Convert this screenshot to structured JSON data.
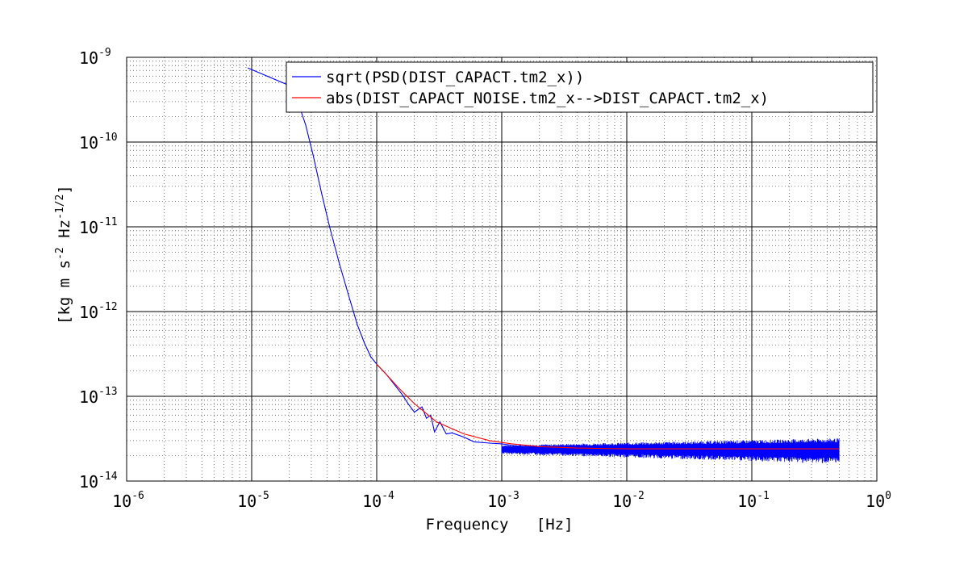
{
  "chart_data": {
    "type": "line",
    "xscale": "log",
    "yscale": "log",
    "xlim": [
      1e-06,
      1
    ],
    "ylim": [
      1e-14,
      1e-09
    ],
    "grid": true,
    "legend_position": "top-right",
    "xlabel": "Frequency   [Hz]",
    "ylabel": {
      "prefix": "[kg m s",
      "exp1": "-2",
      "mid": " Hz",
      "exp2": "-1/2",
      "suffix": "]"
    },
    "x_ticks": [
      {
        "value": 1e-06,
        "base": "10",
        "exp": "-6"
      },
      {
        "value": 1e-05,
        "base": "10",
        "exp": "-5"
      },
      {
        "value": 0.0001,
        "base": "10",
        "exp": "-4"
      },
      {
        "value": 0.001,
        "base": "10",
        "exp": "-3"
      },
      {
        "value": 0.01,
        "base": "10",
        "exp": "-2"
      },
      {
        "value": 0.1,
        "base": "10",
        "exp": "-1"
      },
      {
        "value": 1,
        "base": "10",
        "exp": "0"
      }
    ],
    "y_ticks": [
      {
        "value": 1e-14,
        "base": "10",
        "exp": "-14"
      },
      {
        "value": 1e-13,
        "base": "10",
        "exp": "-13"
      },
      {
        "value": 1e-12,
        "base": "10",
        "exp": "-12"
      },
      {
        "value": 1e-11,
        "base": "10",
        "exp": "-11"
      },
      {
        "value": 1e-10,
        "base": "10",
        "exp": "-10"
      },
      {
        "value": 1e-09,
        "base": "10",
        "exp": "-9"
      }
    ],
    "series": [
      {
        "name": "sqrt(PSD(DIST_CAPACT.tm2_x))",
        "color": "#0000ff",
        "x": [
          9.3e-06,
          1.9e-05,
          2.3e-05,
          2.7e-05,
          3.1e-05,
          3.6e-05,
          4.2e-05,
          5e-05,
          6e-05,
          7e-05,
          8e-05,
          9e-05,
          0.0001,
          0.00012,
          0.00014,
          0.00016,
          0.00018,
          0.0002,
          0.00023,
          0.00025,
          0.00027,
          0.00029,
          0.00032,
          0.00036,
          0.0004,
          0.0005,
          0.0006,
          0.0008,
          0.001,
          0.0013,
          0.0017,
          0.0022,
          0.003,
          0.005,
          0.008,
          0.015,
          0.03,
          0.06,
          0.1,
          0.2,
          0.35,
          0.5
        ],
        "y": [
          7.5e-10,
          4.8e-10,
          3.2e-10,
          1.6e-10,
          7e-11,
          2.6e-11,
          1e-11,
          3.8e-12,
          1.5e-12,
          7e-13,
          4.2e-13,
          2.9e-13,
          2.4e-13,
          1.8e-13,
          1.35e-13,
          1.05e-13,
          8e-14,
          6.5e-14,
          7.5e-14,
          5.5e-14,
          6e-14,
          3.8e-14,
          5e-14,
          3.6e-14,
          3.7e-14,
          3.3e-14,
          2.9e-14,
          2.8e-14,
          2.75e-14,
          2.6e-14,
          2.5e-14,
          2.45e-14,
          2.45e-14,
          2.4e-14,
          2.4e-14,
          2.4e-14,
          2.4e-14,
          2.4e-14,
          2.4e-14,
          2.4e-14,
          2.4e-14,
          2.4e-14
        ],
        "noise_band": {
          "from_x": 0.001,
          "to_x": 0.5,
          "low": 1.6e-14,
          "high": 3.2e-14
        }
      },
      {
        "name": "abs(DIST_CAPACT_NOISE.tm2_x-->DIST_CAPACT.tm2_x)",
        "color": "#ff0000",
        "x": [
          0.0001,
          0.00012,
          0.00015,
          0.0002,
          0.0003,
          0.0005,
          0.0008,
          0.0012,
          0.002,
          0.004,
          0.01,
          0.03,
          0.1,
          0.3,
          0.5
        ],
        "y": [
          2.4e-13,
          1.8e-13,
          1.25e-13,
          8.2e-14,
          5e-14,
          3.6e-14,
          3e-14,
          2.75e-14,
          2.55e-14,
          2.45e-14,
          2.4e-14,
          2.4e-14,
          2.4e-14,
          2.4e-14,
          2.4e-14
        ]
      }
    ]
  }
}
